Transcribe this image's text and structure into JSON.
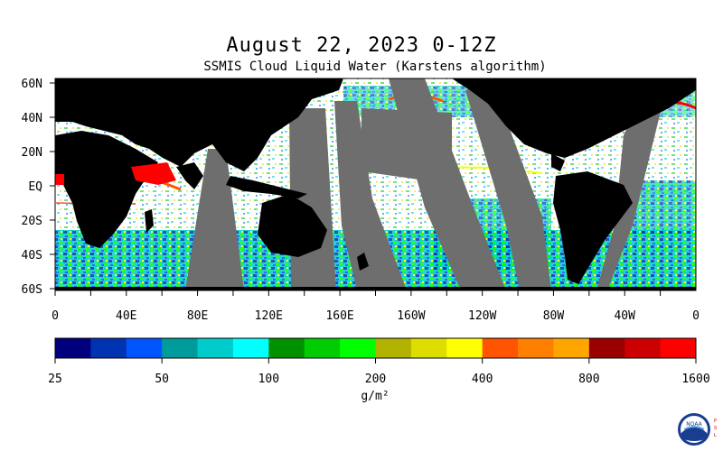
{
  "header": {
    "title": "August 22, 2023 0-12Z",
    "subtitle": "SSMIS Cloud Liquid Water (Karstens algorithm)"
  },
  "map": {
    "lat_labels": [
      "60N",
      "40N",
      "20N",
      "EQ",
      "20S",
      "40S",
      "60S"
    ],
    "lon_labels": [
      "0",
      "40E",
      "80E",
      "120E",
      "160E",
      "160W",
      "120W",
      "80W",
      "40W",
      "0"
    ],
    "colors": {
      "land": "#000000",
      "no_data_swath_gap": "#6e6e6e",
      "clear_ocean": "#ffffff"
    }
  },
  "colorbar": {
    "colors": [
      "#00007f",
      "#0033b2",
      "#0055ff",
      "#009b9b",
      "#00cccc",
      "#00ffff",
      "#009100",
      "#00cc00",
      "#00ff00",
      "#b2b200",
      "#dddd00",
      "#ffff00",
      "#ff5500",
      "#ff7f00",
      "#ffa500",
      "#990000",
      "#cc0000",
      "#ff0000"
    ],
    "tick_labels": [
      "25",
      "50",
      "100",
      "200",
      "400",
      "800",
      "1600"
    ],
    "unit": "g/m²"
  },
  "logo": {
    "name": "noaa-logo",
    "text": "NOAA",
    "side_text": "PSL"
  }
}
